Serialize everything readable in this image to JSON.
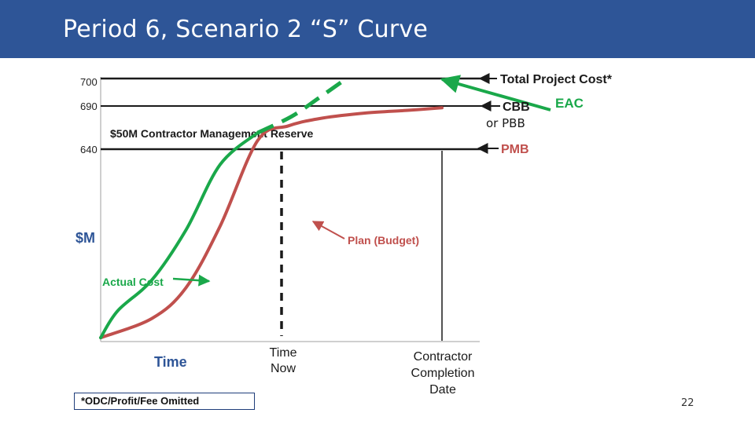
{
  "slide": {
    "title": "Period 6, Scenario 2 “S” Curve",
    "footnote": "*ODC/Profit/Fee Omitted",
    "page_number": "22"
  },
  "chart_data": {
    "type": "line",
    "ylabel": "$M",
    "xlabel": "Time",
    "y_ticks": [
      700,
      690,
      640
    ],
    "ylim": [
      590,
      702
    ],
    "x_markers": [
      "Time Now",
      "Contractor Completion Date"
    ],
    "series": [
      {
        "name": "Actual Cost",
        "color": "#1aa84a",
        "style": "solid",
        "points": [
          [
            0,
            591
          ],
          [
            0.05,
            598
          ],
          [
            0.15,
            606
          ],
          [
            0.25,
            619
          ],
          [
            0.35,
            636
          ],
          [
            0.46,
            659
          ]
        ]
      },
      {
        "name": "EAC",
        "color": "#1aa84a",
        "style": "dashed",
        "points": [
          [
            0.46,
            659
          ],
          [
            0.56,
            678
          ],
          [
            0.64,
            693
          ],
          [
            0.72,
            700
          ]
        ]
      },
      {
        "name": "Plan (Budget)",
        "color": "#c0504d",
        "style": "solid",
        "points": [
          [
            0,
            591
          ],
          [
            0.15,
            596
          ],
          [
            0.25,
            604
          ],
          [
            0.35,
            620
          ],
          [
            0.46,
            650
          ],
          [
            0.55,
            667
          ],
          [
            0.65,
            676
          ],
          [
            0.78,
            682
          ],
          [
            0.9,
            685
          ],
          [
            1.0,
            688
          ]
        ]
      }
    ],
    "reference_lines": [
      {
        "label": "Total Project Cost*",
        "value": 700
      },
      {
        "label": "CBB",
        "sublabel": "or PBB",
        "value": 690
      },
      {
        "label": "PMB",
        "value": 640
      }
    ],
    "annotations": {
      "reserve": "$50M Contractor Management Reserve",
      "eac": "EAC",
      "actual_cost": "Actual Cost",
      "plan": "Plan (Budget)"
    }
  }
}
